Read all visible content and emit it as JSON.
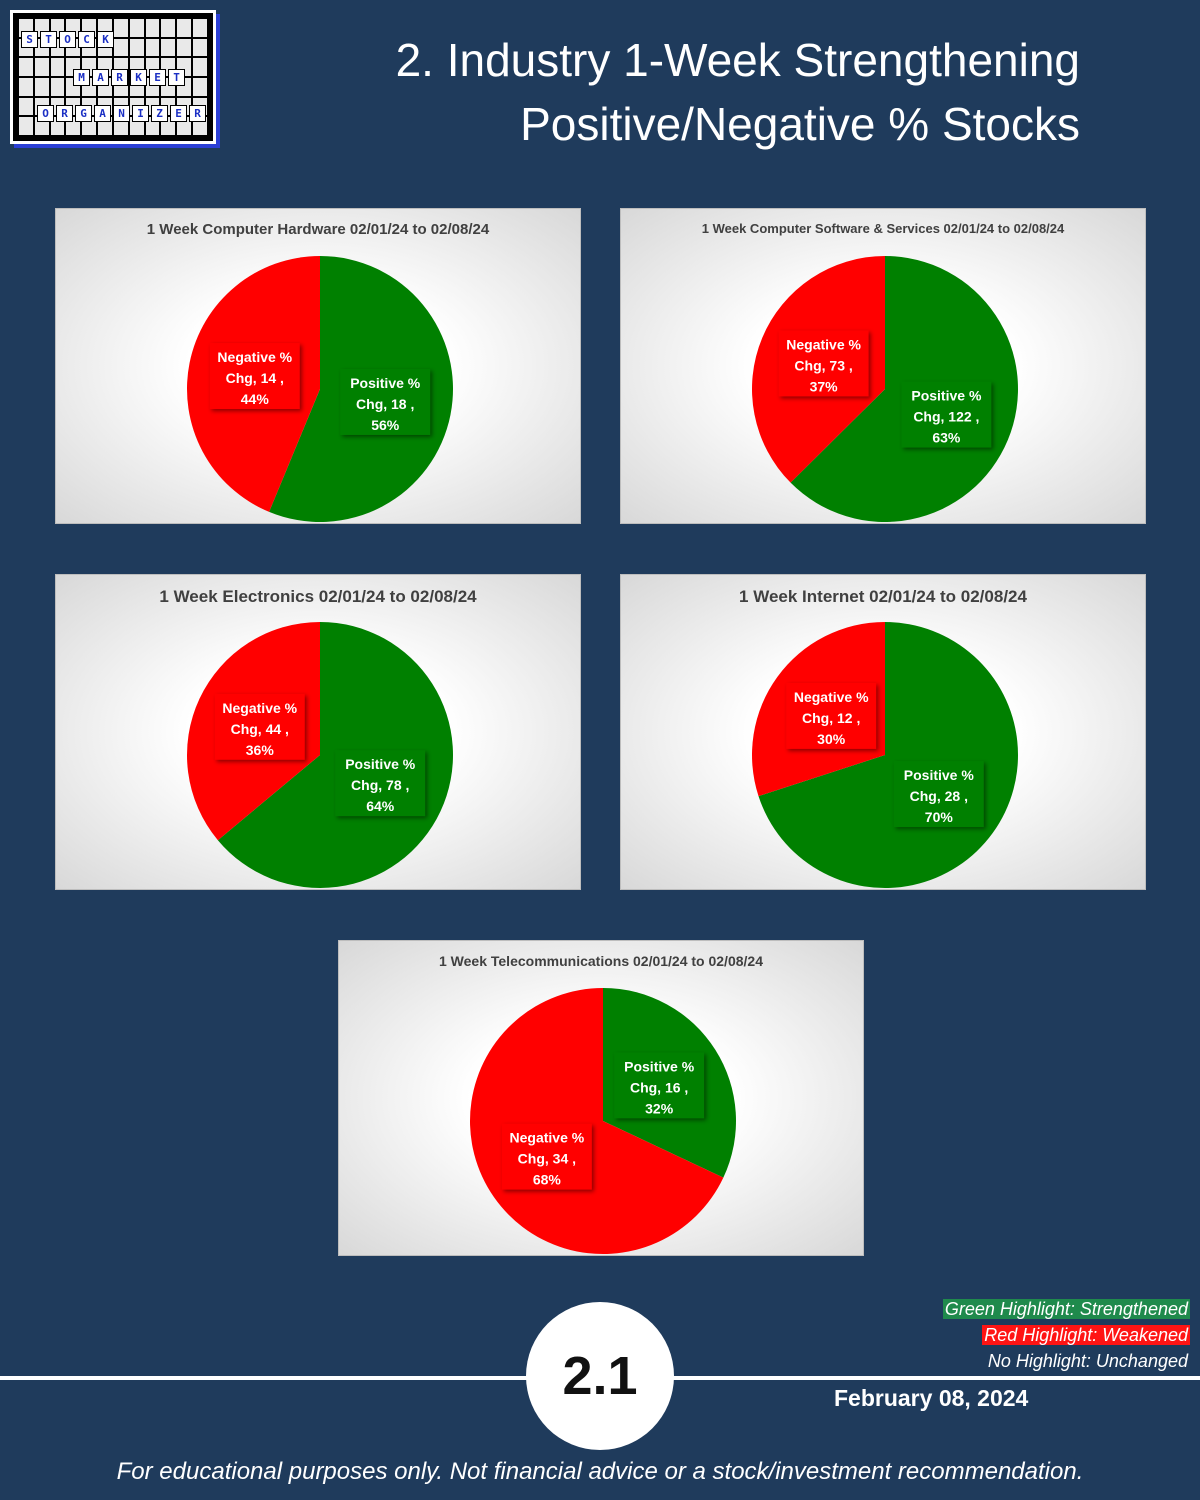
{
  "logo": {
    "words": [
      "STOCK",
      "MARKET",
      "ORGANIZER"
    ]
  },
  "header": {
    "title_line1": "2. Industry 1-Week Strengthening",
    "title_line2": "Positive/Negative % Stocks"
  },
  "colors": {
    "positive": "#008000",
    "negative": "#ff0000",
    "background": "#1f3b5c"
  },
  "chart_data": [
    {
      "type": "pie",
      "title": "1 Week Computer Hardware 02/01/24 to 02/08/24",
      "slices": [
        {
          "name": "Positive % Chg",
          "value": 18,
          "pct": "56%",
          "color": "#008000"
        },
        {
          "name": "Negative % Chg",
          "value": 14,
          "pct": "44%",
          "color": "#ff0000"
        }
      ]
    },
    {
      "type": "pie",
      "title": "1 Week Computer Software & Services 02/01/24  to 02/08/24",
      "slices": [
        {
          "name": "Positive % Chg",
          "value": 122,
          "pct": "63%",
          "color": "#008000"
        },
        {
          "name": "Negative % Chg",
          "value": 73,
          "pct": "37%",
          "color": "#ff0000"
        }
      ]
    },
    {
      "type": "pie",
      "title": "1 Week Electronics 02/01/24 to 02/08/24",
      "slices": [
        {
          "name": "Positive % Chg",
          "value": 78,
          "pct": "64%",
          "color": "#008000"
        },
        {
          "name": "Negative % Chg",
          "value": 44,
          "pct": "36%",
          "color": "#ff0000"
        }
      ]
    },
    {
      "type": "pie",
      "title": "1 Week Internet 02/01/24 to 02/08/24",
      "slices": [
        {
          "name": "Positive % Chg",
          "value": 28,
          "pct": "70%",
          "color": "#008000"
        },
        {
          "name": "Negative % Chg",
          "value": 12,
          "pct": "30%",
          "color": "#ff0000"
        }
      ]
    },
    {
      "type": "pie",
      "title": "1 Week Telecommunications 02/01/24 to 02/08/24",
      "slices": [
        {
          "name": "Positive % Chg",
          "value": 16,
          "pct": "32%",
          "color": "#008000"
        },
        {
          "name": "Negative % Chg",
          "value": 34,
          "pct": "68%",
          "color": "#ff0000"
        }
      ]
    }
  ],
  "legend": {
    "green": "Green Highlight: Strengthened",
    "red": "Red Highlight: Weakened",
    "none": "No Highlight: Unchanged"
  },
  "footer": {
    "badge": "2.1",
    "date": "February 08, 2024",
    "disclaimer": "For educational purposes only. Not financial advice or a stock/investment recommendation."
  }
}
